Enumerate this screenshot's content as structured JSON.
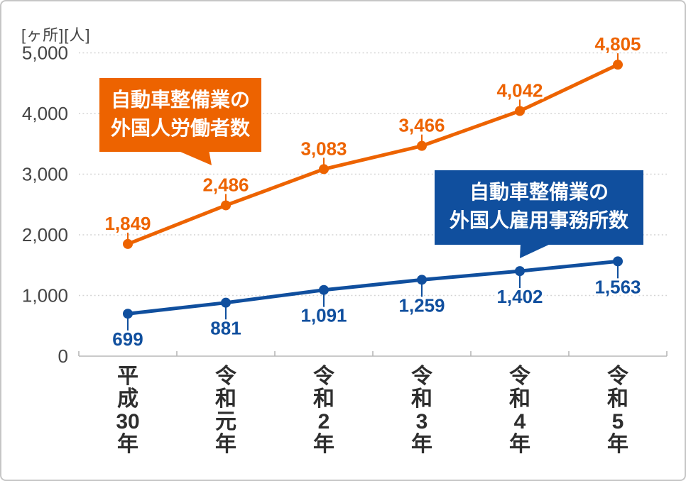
{
  "chart_data": {
    "type": "line",
    "unit_label": "[ヶ所][人]",
    "categories": [
      "平成30年",
      "令和元年",
      "令和2年",
      "令和3年",
      "令和4年",
      "令和5年"
    ],
    "series": [
      {
        "id": "workers",
        "name": "自動車整備業の外国人労働者数",
        "color": "#ED6300",
        "values": [
          1849,
          2486,
          3083,
          3466,
          4042,
          4805
        ],
        "labels": [
          "1,849",
          "2,486",
          "3,083",
          "3,466",
          "4,042",
          "4,805"
        ],
        "label_side": "above"
      },
      {
        "id": "offices",
        "name": "自動車整備業の外国人雇用事務所数",
        "color": "#104F9E",
        "values": [
          699,
          881,
          1091,
          1259,
          1402,
          1563
        ],
        "labels": [
          "699",
          "881",
          "1,091",
          "1,259",
          "1,402",
          "1,563"
        ],
        "label_side": "below"
      }
    ],
    "callouts": [
      {
        "series": "workers",
        "lines": [
          "自動車整備業の",
          "外国人労働者数"
        ],
        "color": "#ED6300"
      },
      {
        "series": "offices",
        "lines": [
          "自動車整備業の",
          "外国人雇用事務所数"
        ],
        "color": "#104F9E"
      }
    ],
    "y_axis": {
      "min": 0,
      "max": 5000,
      "ticks": [
        0,
        1000,
        2000,
        3000,
        4000,
        5000
      ],
      "tick_labels": [
        "0",
        "1,000",
        "2,000",
        "3,000",
        "4,000",
        "5,000"
      ]
    },
    "grid": "horizontal dotted",
    "legend_position": "callout bubbles inside plot"
  },
  "colors": {
    "grid": "#d4d4d4",
    "axis": "#b8b8b8",
    "y_tick_text": "#454545",
    "x_tick_text": "#2e2e2e",
    "background": "#ffffff",
    "frame_border": "#c6c6c6"
  }
}
